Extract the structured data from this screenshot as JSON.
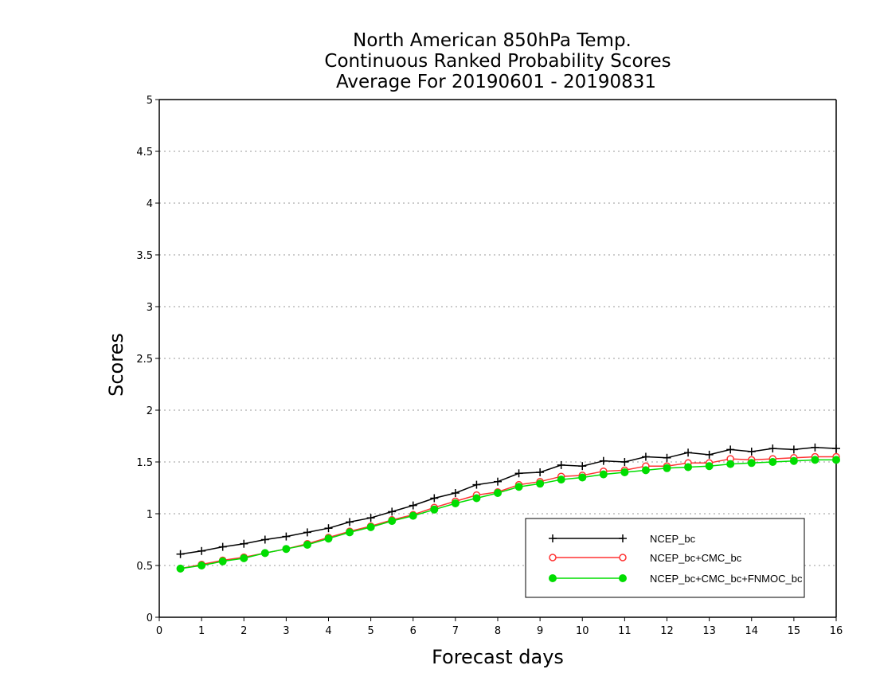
{
  "chart_data": {
    "type": "line",
    "title": [
      "North American 850hPa Temp.",
      "Continuous Ranked Probability Scores",
      "Average For 20190601 - 20190831"
    ],
    "xlabel": "Forecast days",
    "ylabel": "Scores",
    "xlim": [
      0,
      16
    ],
    "ylim": [
      0,
      5
    ],
    "xticks": [
      "0",
      "1",
      "2",
      "3",
      "4",
      "5",
      "6",
      "7",
      "8",
      "9",
      "10",
      "11",
      "12",
      "13",
      "14",
      "15",
      "16"
    ],
    "yticks": [
      "0",
      "0.5",
      "1",
      "1.5",
      "2",
      "2.5",
      "3",
      "3.5",
      "4",
      "4.5",
      "5"
    ],
    "grid": "horizontal dotted",
    "legend_position": "lower-right",
    "x": [
      0.5,
      1,
      1.5,
      2,
      2.5,
      3,
      3.5,
      4,
      4.5,
      5,
      5.5,
      6,
      6.5,
      7,
      7.5,
      8,
      8.5,
      9,
      9.5,
      10,
      10.5,
      11,
      11.5,
      12,
      12.5,
      13,
      13.5,
      14,
      14.5,
      15,
      15.5,
      16
    ],
    "series": [
      {
        "name": "NCEP_bc",
        "color": "#000000",
        "marker": "plus",
        "values": [
          0.61,
          0.64,
          0.68,
          0.71,
          0.75,
          0.78,
          0.82,
          0.86,
          0.92,
          0.96,
          1.02,
          1.08,
          1.15,
          1.2,
          1.28,
          1.31,
          1.39,
          1.4,
          1.47,
          1.46,
          1.51,
          1.5,
          1.55,
          1.54,
          1.59,
          1.57,
          1.62,
          1.6,
          1.63,
          1.62,
          1.64,
          1.63
        ]
      },
      {
        "name": "NCEP_bc+CMC_bc",
        "color": "#ff3333",
        "marker": "open-circle",
        "values": [
          0.47,
          0.51,
          0.55,
          0.58,
          0.62,
          0.66,
          0.71,
          0.77,
          0.83,
          0.88,
          0.94,
          0.99,
          1.06,
          1.12,
          1.18,
          1.21,
          1.28,
          1.31,
          1.36,
          1.37,
          1.41,
          1.42,
          1.46,
          1.46,
          1.49,
          1.49,
          1.53,
          1.52,
          1.53,
          1.54,
          1.55,
          1.55
        ]
      },
      {
        "name": "NCEP_bc+CMC_bc+FNMOC_bc",
        "color": "#00dd00",
        "marker": "filled-circle",
        "values": [
          0.47,
          0.5,
          0.54,
          0.57,
          0.62,
          0.66,
          0.7,
          0.76,
          0.82,
          0.87,
          0.93,
          0.98,
          1.04,
          1.1,
          1.15,
          1.2,
          1.26,
          1.29,
          1.33,
          1.35,
          1.38,
          1.4,
          1.42,
          1.44,
          1.45,
          1.46,
          1.48,
          1.49,
          1.5,
          1.51,
          1.52,
          1.52
        ]
      }
    ]
  }
}
